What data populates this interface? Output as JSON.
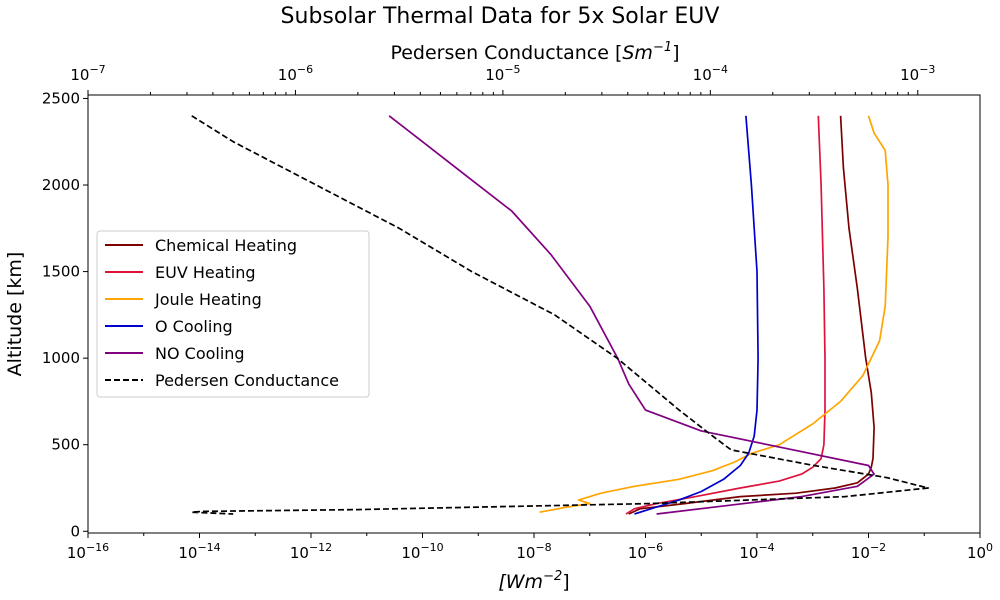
{
  "chart_data": {
    "type": "line",
    "title": "Subsolar Thermal Data for 5x Solar EUV",
    "xlabel_bottom": "[Wm",
    "xlabel_bottom_exp": "−2",
    "xlabel_bottom_close": "]",
    "xlabel_top": "Pedersen Conductance [",
    "xlabel_top_unit": "Sm",
    "xlabel_top_exp": "−1",
    "xlabel_top_close": "]",
    "ylabel": "Altitude [km]",
    "x_scale": "log",
    "xlim_bottom_exp": [
      -16,
      0
    ],
    "xlim_top_exp": [
      -7,
      -2.7
    ],
    "ylim": [
      -10,
      2520
    ],
    "y_ticks": [
      0,
      500,
      1000,
      1500,
      2000,
      2500
    ],
    "x_ticks_bottom_exp": [
      -16,
      -14,
      -12,
      -10,
      -8,
      -6,
      -4,
      -2,
      0
    ],
    "x_ticks_top_exp": [
      -7,
      -6,
      -5,
      -4,
      -3
    ],
    "tick_base": "10",
    "minus_sign": "−",
    "legend_position": "center-left",
    "series": [
      {
        "name": "Chemical Heating",
        "color": "#7b0000",
        "dash": "solid",
        "axis": "bottom",
        "points": [
          [
            -2.5,
            2400
          ],
          [
            -2.45,
            2100
          ],
          [
            -2.35,
            1750
          ],
          [
            -2.2,
            1400
          ],
          [
            -2.05,
            1000
          ],
          [
            -1.95,
            800
          ],
          [
            -1.9,
            600
          ],
          [
            -1.92,
            420
          ],
          [
            -1.95,
            370
          ],
          [
            -2.0,
            330
          ],
          [
            -2.2,
            280
          ],
          [
            -2.6,
            250
          ],
          [
            -3.3,
            220
          ],
          [
            -4.3,
            200
          ],
          [
            -5.3,
            160
          ],
          [
            -6.1,
            130
          ],
          [
            -6.3,
            100
          ]
        ]
      },
      {
        "name": "EUV Heating",
        "color": "#dc143c",
        "dash": "solid",
        "axis": "bottom",
        "points": [
          [
            -2.9,
            2400
          ],
          [
            -2.85,
            2000
          ],
          [
            -2.8,
            1400
          ],
          [
            -2.78,
            1000
          ],
          [
            -2.78,
            700
          ],
          [
            -2.8,
            500
          ],
          [
            -2.85,
            420
          ],
          [
            -3.0,
            370
          ],
          [
            -3.2,
            330
          ],
          [
            -3.6,
            290
          ],
          [
            -4.3,
            250
          ],
          [
            -5.1,
            200
          ],
          [
            -5.8,
            160
          ],
          [
            -6.2,
            130
          ],
          [
            -6.35,
            100
          ]
        ]
      },
      {
        "name": "Joule Heating",
        "color": "#ffa500",
        "dash": "solid",
        "axis": "bottom",
        "points": [
          [
            -2.0,
            2400
          ],
          [
            -1.9,
            2300
          ],
          [
            -1.7,
            2200
          ],
          [
            -1.65,
            2000
          ],
          [
            -1.65,
            1700
          ],
          [
            -1.7,
            1300
          ],
          [
            -1.8,
            1100
          ],
          [
            -2.1,
            900
          ],
          [
            -2.5,
            750
          ],
          [
            -3.0,
            620
          ],
          [
            -3.6,
            500
          ],
          [
            -4.1,
            450
          ],
          [
            -4.4,
            400
          ],
          [
            -4.8,
            350
          ],
          [
            -5.4,
            300
          ],
          [
            -6.2,
            260
          ],
          [
            -6.8,
            220
          ],
          [
            -7.2,
            180
          ],
          [
            -7.0,
            160
          ],
          [
            -7.4,
            140
          ],
          [
            -7.9,
            110
          ]
        ]
      },
      {
        "name": "O Cooling",
        "color": "#0000cd",
        "dash": "solid",
        "axis": "bottom",
        "points": [
          [
            -4.2,
            2400
          ],
          [
            -4.1,
            2000
          ],
          [
            -4.0,
            1500
          ],
          [
            -3.98,
            1000
          ],
          [
            -4.0,
            700
          ],
          [
            -4.05,
            550
          ],
          [
            -4.15,
            450
          ],
          [
            -4.3,
            380
          ],
          [
            -4.6,
            300
          ],
          [
            -5.0,
            230
          ],
          [
            -5.4,
            180
          ],
          [
            -5.8,
            140
          ],
          [
            -6.2,
            100
          ]
        ]
      },
      {
        "name": "NO Cooling",
        "color": "#800080",
        "dash": "solid",
        "axis": "bottom",
        "points": [
          [
            -10.6,
            2400
          ],
          [
            -10.0,
            2250
          ],
          [
            -9.2,
            2050
          ],
          [
            -8.4,
            1850
          ],
          [
            -7.7,
            1600
          ],
          [
            -7.0,
            1300
          ],
          [
            -6.5,
            1000
          ],
          [
            -6.3,
            850
          ],
          [
            -6.0,
            700
          ],
          [
            -5.0,
            580
          ],
          [
            -3.5,
            480
          ],
          [
            -2.0,
            380
          ],
          [
            -1.9,
            330
          ],
          [
            -2.2,
            260
          ],
          [
            -3.2,
            200
          ],
          [
            -4.5,
            150
          ],
          [
            -5.8,
            100
          ]
        ]
      },
      {
        "name": "Pedersen Conductance",
        "color": "#000000",
        "dash": "dashed",
        "axis": "top",
        "points": [
          [
            -6.5,
            2400
          ],
          [
            -6.3,
            2250
          ],
          [
            -5.9,
            2000
          ],
          [
            -5.5,
            1750
          ],
          [
            -5.15,
            1500
          ],
          [
            -4.75,
            1250
          ],
          [
            -4.45,
            1000
          ],
          [
            -4.3,
            850
          ],
          [
            -4.15,
            700
          ],
          [
            -4.0,
            560
          ],
          [
            -3.9,
            470
          ],
          [
            -3.5,
            380
          ],
          [
            -3.15,
            310
          ],
          [
            -2.95,
            250
          ],
          [
            -3.35,
            200
          ],
          [
            -4.3,
            160
          ],
          [
            -5.7,
            125
          ],
          [
            -6.45,
            115
          ],
          [
            -6.5,
            110
          ],
          [
            -6.3,
            100
          ]
        ]
      }
    ]
  }
}
